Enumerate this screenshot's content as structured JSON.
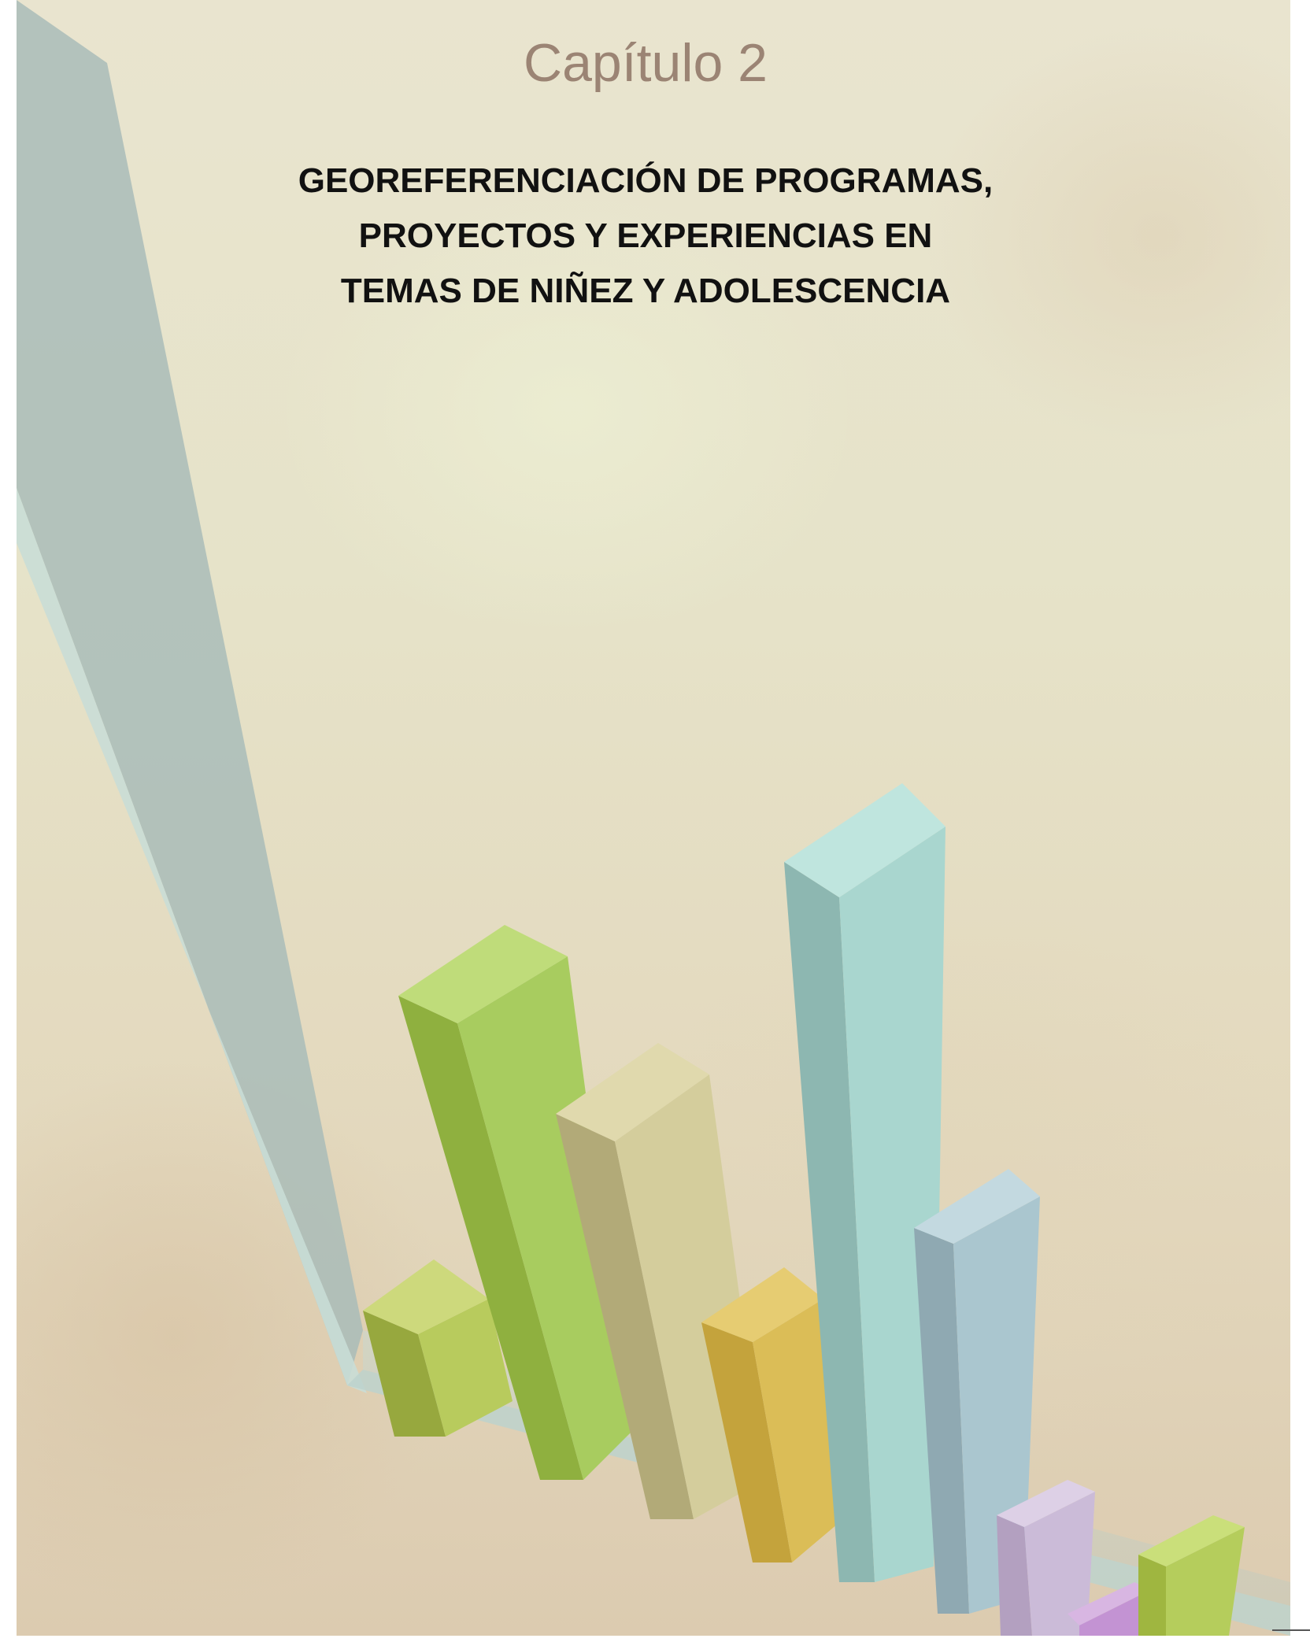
{
  "chapter_label": "Capítulo 2",
  "title_lines": [
    "GEOREFERENCIACIÓN DE PROGRAMAS,",
    "PROYECTOS Y EXPERIENCIAS EN",
    "TEMAS DE NIÑEZ Y ADOLESCENCIA"
  ],
  "illustration": {
    "kind": "decorative 3D bar chart graphic",
    "bar_colors": [
      "#b9c95a",
      "#a6c85a",
      "#d3cc9c",
      "#dbbd55",
      "#a9d3cc",
      "#a9c3cc",
      "#c8b5d4",
      "#c79ad4",
      "#b3cc5c"
    ],
    "axis_color": "#a9bdb6"
  }
}
